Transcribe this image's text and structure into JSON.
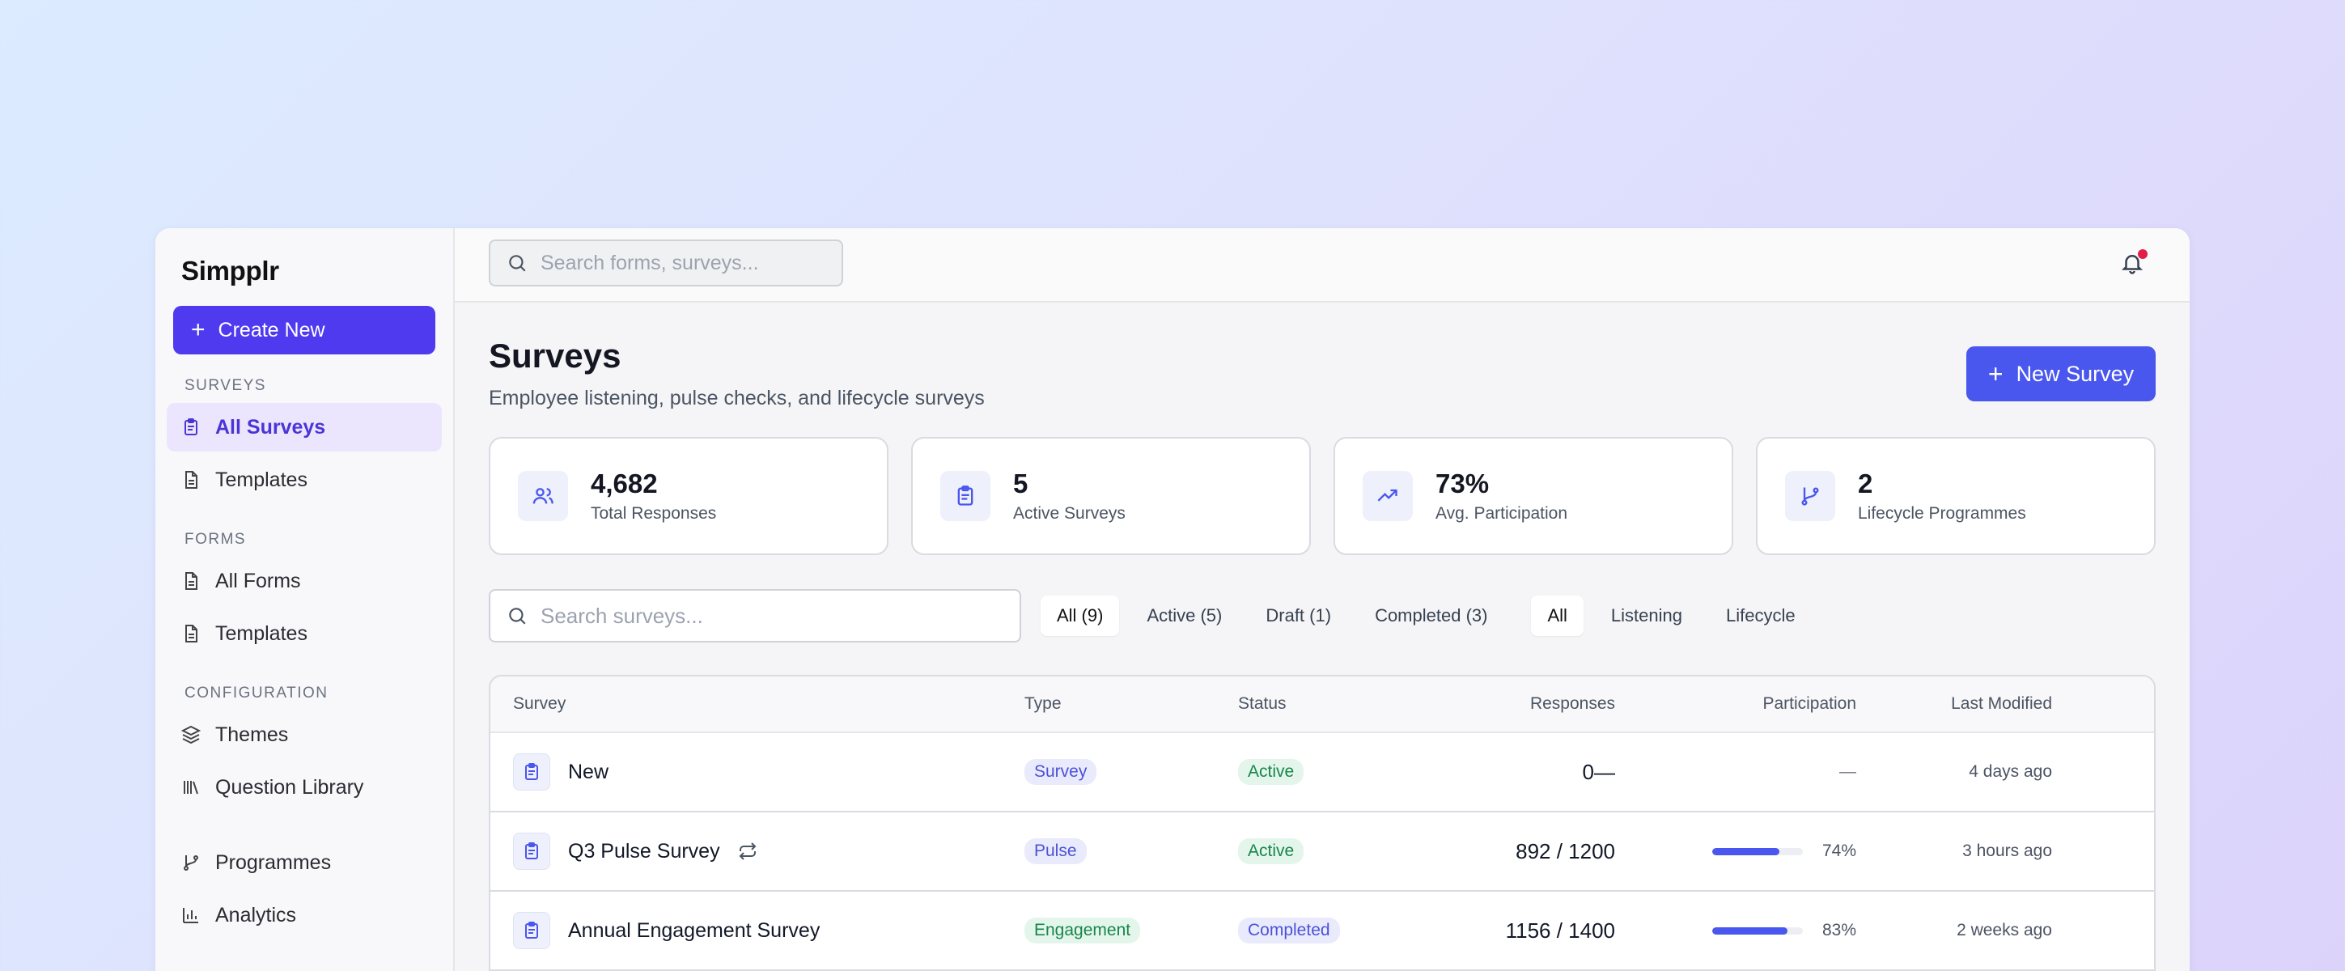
{
  "sidebar": {
    "brand": "Simpplr",
    "create_label": "Create New",
    "sections": {
      "surveys": "SURVEYS",
      "forms": "FORMS",
      "configuration": "CONFIGURATION"
    },
    "items": {
      "all_surveys": "All Surveys",
      "survey_templates": "Templates",
      "all_forms": "All Forms",
      "form_templates": "Templates",
      "themes": "Themes",
      "question_library": "Question Library",
      "programmes": "Programmes",
      "analytics": "Analytics"
    }
  },
  "topbar": {
    "search_placeholder": "Search forms, surveys..."
  },
  "page": {
    "title": "Surveys",
    "subtitle": "Employee listening, pulse checks, and lifecycle surveys",
    "new_button": "New Survey"
  },
  "stats": [
    {
      "value": "4,682",
      "label": "Total Responses",
      "icon": "users-icon"
    },
    {
      "value": "5",
      "label": "Active Surveys",
      "icon": "clipboard-icon"
    },
    {
      "value": "73%",
      "label": "Avg. Participation",
      "icon": "trending-up-icon"
    },
    {
      "value": "2",
      "label": "Lifecycle Programmes",
      "icon": "branch-icon"
    }
  ],
  "filters": {
    "search_placeholder": "Search surveys...",
    "status": [
      "All (9)",
      "Active (5)",
      "Draft (1)",
      "Completed (3)"
    ],
    "category": [
      "All",
      "Listening",
      "Lifecycle"
    ]
  },
  "table": {
    "headers": {
      "survey": "Survey",
      "type": "Type",
      "status": "Status",
      "responses": "Responses",
      "participation": "Participation",
      "modified": "Last Modified"
    },
    "rows": [
      {
        "name": "New",
        "type": "Survey",
        "status": "Active",
        "responses": "0—",
        "participation": "—",
        "participation_value": null,
        "modified": "4 days ago"
      },
      {
        "name": "Q3 Pulse Survey",
        "type": "Pulse",
        "status": "Active",
        "responses": "892 / 1200",
        "participation": "74%",
        "participation_value": 74,
        "modified": "3 hours ago"
      },
      {
        "name": "Annual Engagement Survey",
        "type": "Engagement",
        "status": "Completed",
        "responses": "1156 / 1400",
        "participation": "83%",
        "participation_value": 83,
        "modified": "2 weeks ago"
      }
    ]
  },
  "colors": {
    "accent": "#4f3af0",
    "primary_button": "#4957ee",
    "active_badge": "#17864a",
    "notification_dot": "#e11d48"
  }
}
